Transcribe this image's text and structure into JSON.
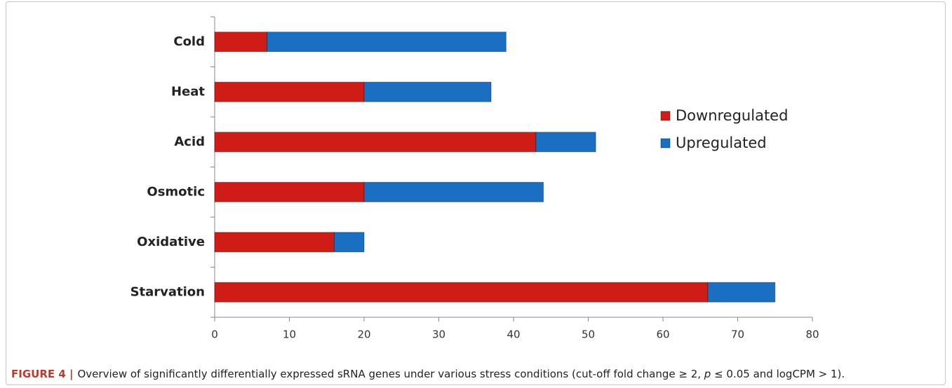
{
  "chart_data": {
    "type": "stacked_barh",
    "categories": [
      "Cold",
      "Heat",
      "Acid",
      "Osmotic",
      "Oxidative",
      "Starvation"
    ],
    "series": [
      {
        "name": "Downregulated",
        "color": "#d01c17",
        "values": [
          7,
          20,
          43,
          20,
          16,
          66
        ]
      },
      {
        "name": "Upregulated",
        "color": "#1b6fc2",
        "values": [
          32,
          17,
          8,
          24,
          4,
          9
        ]
      }
    ],
    "xlim": [
      0,
      80
    ],
    "xticks": [
      0,
      10,
      20,
      30,
      40,
      50,
      60,
      70,
      80
    ],
    "legend": "right",
    "caption_label": "FIGURE 4 |",
    "caption": [
      "Overview of significantly differentially expressed sRNA genes under various stress conditions (cut-off fold change ≥ 2, ",
      "p",
      " ≤ 0.05 and logCPM > 1)."
    ]
  }
}
